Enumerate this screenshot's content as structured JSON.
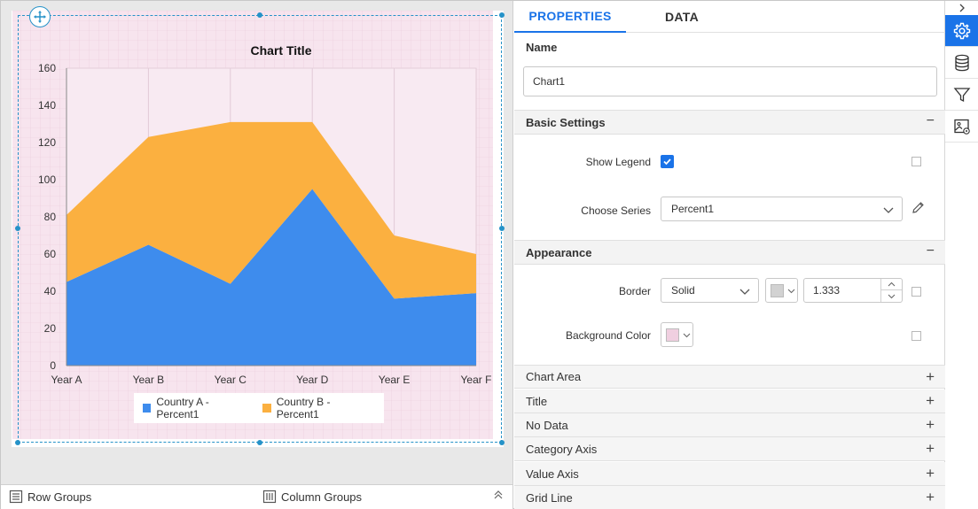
{
  "chart_data": {
    "type": "area",
    "stacked": true,
    "title": "Chart Title",
    "categories": [
      "Year A",
      "Year B",
      "Year C",
      "Year D",
      "Year E",
      "Year F"
    ],
    "series": [
      {
        "name": "Country A - Percent1",
        "values": [
          45,
          65,
          44,
          95,
          36,
          39
        ],
        "color": "#3e8ced"
      },
      {
        "name": "Country B - Percent1",
        "values": [
          36,
          58,
          87,
          36,
          34,
          21
        ],
        "color": "#fbb040"
      }
    ],
    "ylim": [
      0,
      160
    ],
    "yticks": [
      0,
      20,
      40,
      60,
      80,
      100,
      120,
      140,
      160
    ],
    "grid": true,
    "legend_position": "bottom",
    "background": "#f7e4ee"
  },
  "groups_bar": {
    "row_groups": "Row Groups",
    "column_groups": "Column Groups"
  },
  "panel": {
    "tabs": {
      "properties": "PROPERTIES",
      "data": "DATA"
    },
    "name_label": "Name",
    "name_value": "Chart1",
    "basic_settings": {
      "header": "Basic Settings",
      "show_legend_label": "Show Legend",
      "show_legend_checked": true,
      "choose_series_label": "Choose Series",
      "choose_series_value": "Percent1"
    },
    "appearance": {
      "header": "Appearance",
      "border_label": "Border",
      "border_style": "Solid",
      "border_color": "#d2d2d2",
      "border_width": "1.333",
      "background_color_label": "Background Color",
      "background_color": "#f0cfe0"
    },
    "collapsed_sections": [
      "Chart Area",
      "Title",
      "No Data",
      "Category Axis",
      "Value Axis",
      "Grid Line"
    ],
    "accent_color": "#1a73e8"
  },
  "toolbar": {
    "icons": [
      "gear-icon",
      "database-icon",
      "filter-icon",
      "image-settings-icon"
    ]
  }
}
